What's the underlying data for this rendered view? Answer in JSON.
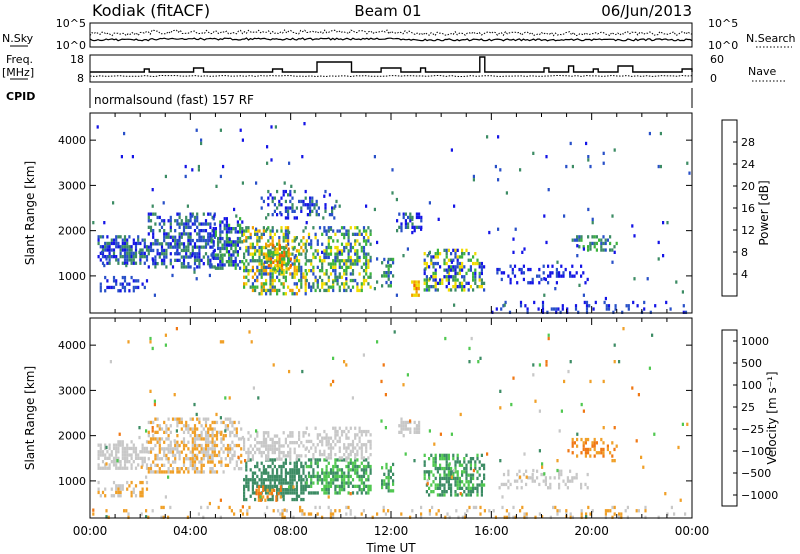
{
  "header": {
    "station": "Kodiak (fitACF)",
    "beam": "Beam 01",
    "date": "06/Jun/2013"
  },
  "strip1": {
    "left_label": "N.Sky",
    "right_label": "N.Search",
    "left_ticks": [
      "10^5",
      "10^0"
    ],
    "right_ticks": [
      "10^5",
      "10^0"
    ]
  },
  "strip2": {
    "left_label_1": "Freq.",
    "left_label_2": "[MHz]",
    "right_label": "Nave",
    "left_ticks": [
      "18",
      "8"
    ],
    "right_ticks": [
      "60",
      "0"
    ]
  },
  "strip3": {
    "left_label": "CPID",
    "text": "normalsound (fast) 157 RF"
  },
  "colors": {
    "power_scale": [
      "#1414e6",
      "#2850c8",
      "#3c8c64",
      "#3cb43c",
      "#f0dc00",
      "#f0a000",
      "#f06400",
      "#e61414"
    ],
    "velocity_scale": [
      "#1e3cc8",
      "#3c6ebe",
      "#3c8c64",
      "#50c850",
      "#c8c8c8",
      "#f0a028",
      "#f07814",
      "#e61414"
    ]
  },
  "chart_data": [
    {
      "type": "heatmap",
      "panel": "power",
      "ylabel": "Slant Range [km]",
      "xlabel": "",
      "xlim_hours": [
        0,
        24
      ],
      "ylim": [
        180,
        4600
      ],
      "yticks": [
        "1000",
        "2000",
        "3000",
        "4000"
      ],
      "colorbar_label": "Power [dB]",
      "colorbar_ticks": [
        "4",
        "8",
        "12",
        "16",
        "20",
        "24",
        "28"
      ],
      "colorbar_range": [
        0,
        30
      ],
      "echo_regions": [
        {
          "t0": 0.3,
          "t1": 2.3,
          "r0": 1300,
          "r1": 1900,
          "dens": 0.85,
          "lvl": [
            0,
            2
          ]
        },
        {
          "t0": 0.3,
          "t1": 2.3,
          "r0": 700,
          "r1": 1000,
          "dens": 0.6,
          "lvl": [
            0,
            1
          ]
        },
        {
          "t0": 2.3,
          "t1": 5.0,
          "r0": 1200,
          "r1": 2400,
          "dens": 0.75,
          "lvl": [
            0,
            2
          ]
        },
        {
          "t0": 4.8,
          "t1": 6.1,
          "r0": 1200,
          "r1": 2300,
          "dens": 0.75,
          "lvl": [
            0,
            3
          ]
        },
        {
          "t0": 6.1,
          "t1": 8.6,
          "r0": 600,
          "r1": 2100,
          "dens": 0.8,
          "lvl": [
            1,
            5
          ]
        },
        {
          "t0": 7.0,
          "t1": 8.0,
          "r0": 1100,
          "r1": 1700,
          "dens": 0.9,
          "lvl": [
            3,
            6
          ]
        },
        {
          "t0": 8.6,
          "t1": 11.2,
          "r0": 700,
          "r1": 2100,
          "dens": 0.7,
          "lvl": [
            1,
            4
          ]
        },
        {
          "t0": 6.8,
          "t1": 9.8,
          "r0": 2300,
          "r1": 2900,
          "dens": 0.45,
          "lvl": [
            0,
            2
          ]
        },
        {
          "t0": 11.6,
          "t1": 12.1,
          "r0": 800,
          "r1": 1400,
          "dens": 0.7,
          "lvl": [
            1,
            3
          ]
        },
        {
          "t0": 12.2,
          "t1": 13.2,
          "r0": 2000,
          "r1": 2400,
          "dens": 0.55,
          "lvl": [
            0,
            2
          ]
        },
        {
          "t0": 13.3,
          "t1": 15.7,
          "r0": 700,
          "r1": 1600,
          "dens": 0.7,
          "lvl": [
            0,
            4
          ]
        },
        {
          "t0": 12.8,
          "t1": 13.1,
          "r0": 600,
          "r1": 900,
          "dens": 0.8,
          "lvl": [
            4,
            6
          ]
        },
        {
          "t0": 16.2,
          "t1": 19.8,
          "r0": 850,
          "r1": 1250,
          "dens": 0.35,
          "lvl": [
            0,
            1
          ]
        },
        {
          "t0": 19.2,
          "t1": 21.0,
          "r0": 1600,
          "r1": 1900,
          "dens": 0.55,
          "lvl": [
            1,
            3
          ]
        },
        {
          "t0": 16.0,
          "t1": 24.0,
          "r0": 200,
          "r1": 450,
          "dens": 0.3,
          "lvl": [
            0,
            1
          ]
        },
        {
          "t0": 0.0,
          "t1": 24.0,
          "r0": 200,
          "r1": 4400,
          "dens": 0.015,
          "lvl": [
            0,
            2
          ]
        }
      ]
    },
    {
      "type": "heatmap",
      "panel": "velocity",
      "ylabel": "Slant Range [km]",
      "xlabel": "Time UT",
      "xlim_hours": [
        0,
        24
      ],
      "ylim": [
        180,
        4600
      ],
      "yticks": [
        "1000",
        "2000",
        "3000",
        "4000"
      ],
      "xticks": [
        "00:00",
        "04:00",
        "08:00",
        "12:00",
        "16:00",
        "20:00",
        "00:00"
      ],
      "colorbar_label": "Velocity [m s⁻¹]",
      "colorbar_ticks": [
        "1000",
        "500",
        "100",
        "25",
        "−25",
        "−100",
        "−500",
        "−1000"
      ],
      "echo_regions": [
        {
          "t0": 0.3,
          "t1": 2.3,
          "r0": 1300,
          "r1": 1900,
          "dens": 0.85,
          "lvl": [
            4,
            4
          ]
        },
        {
          "t0": 0.3,
          "t1": 2.3,
          "r0": 700,
          "r1": 1000,
          "dens": 0.6,
          "lvl": [
            4,
            5
          ]
        },
        {
          "t0": 2.3,
          "t1": 6.0,
          "r0": 1200,
          "r1": 2400,
          "dens": 0.75,
          "lvl": [
            4,
            5
          ]
        },
        {
          "t0": 6.1,
          "t1": 8.6,
          "r0": 600,
          "r1": 1500,
          "dens": 0.85,
          "lvl": [
            2,
            2
          ]
        },
        {
          "t0": 6.1,
          "t1": 8.6,
          "r0": 1500,
          "r1": 2100,
          "dens": 0.7,
          "lvl": [
            4,
            4
          ]
        },
        {
          "t0": 8.6,
          "t1": 11.2,
          "r0": 700,
          "r1": 1500,
          "dens": 0.75,
          "lvl": [
            2,
            3
          ]
        },
        {
          "t0": 8.6,
          "t1": 11.2,
          "r0": 1500,
          "r1": 2200,
          "dens": 0.6,
          "lvl": [
            4,
            4
          ]
        },
        {
          "t0": 6.6,
          "t1": 7.6,
          "r0": 600,
          "r1": 900,
          "dens": 0.7,
          "lvl": [
            5,
            6
          ]
        },
        {
          "t0": 11.6,
          "t1": 12.1,
          "r0": 800,
          "r1": 1400,
          "dens": 0.7,
          "lvl": [
            2,
            3
          ]
        },
        {
          "t0": 12.2,
          "t1": 13.2,
          "r0": 2000,
          "r1": 2400,
          "dens": 0.55,
          "lvl": [
            4,
            4
          ]
        },
        {
          "t0": 13.3,
          "t1": 15.7,
          "r0": 700,
          "r1": 1600,
          "dens": 0.75,
          "lvl": [
            2,
            3
          ]
        },
        {
          "t0": 16.2,
          "t1": 19.8,
          "r0": 850,
          "r1": 1250,
          "dens": 0.35,
          "lvl": [
            4,
            4
          ]
        },
        {
          "t0": 19.2,
          "t1": 21.0,
          "r0": 1550,
          "r1": 1950,
          "dens": 0.6,
          "lvl": [
            5,
            6
          ]
        },
        {
          "t0": 0.0,
          "t1": 24.0,
          "r0": 200,
          "r1": 450,
          "dens": 0.25,
          "lvl": [
            4,
            5
          ]
        },
        {
          "t0": 0.0,
          "t1": 24.0,
          "r0": 200,
          "r1": 4400,
          "dens": 0.015,
          "lvl": [
            2,
            6
          ]
        }
      ]
    }
  ]
}
